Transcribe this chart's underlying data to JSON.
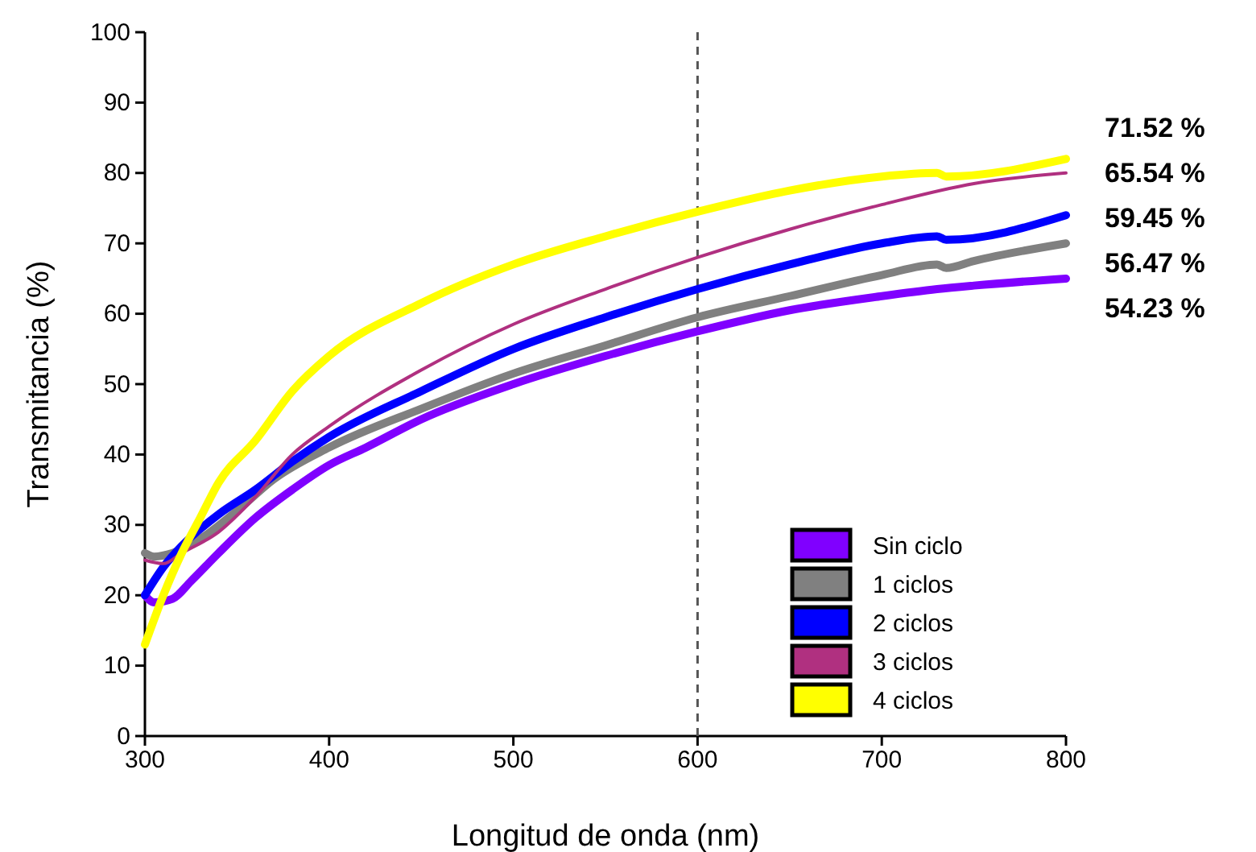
{
  "chart_data": {
    "type": "line",
    "xlabel": "Longitud de onda (nm)",
    "ylabel": "Transmitancia (%)",
    "xlim": [
      300,
      800
    ],
    "xticks": [
      300,
      400,
      500,
      600,
      700,
      800
    ],
    "ylim": [
      0,
      100
    ],
    "yticks": [
      0,
      10,
      20,
      30,
      40,
      50,
      60,
      70,
      80,
      90,
      100
    ],
    "grid": false,
    "legend": "bottom right",
    "marker": "none",
    "line_style": "solid",
    "ref_lines": [
      {
        "axis": "x",
        "value": 600,
        "color": "#555555",
        "line_style": "dashed"
      }
    ],
    "annotations": [
      "71.52 %",
      "65.54 %",
      "59.45 %",
      "56.47 %",
      "54.23 %"
    ],
    "series": [
      {
        "name": "Sin ciclo",
        "color": "#8000ff",
        "x": [
          300,
          305,
          315,
          325,
          340,
          360,
          380,
          400,
          420,
          450,
          500,
          550,
          600,
          650,
          700,
          730,
          750,
          800
        ],
        "values": [
          20,
          19,
          19.5,
          22,
          26,
          31,
          35,
          38.5,
          41,
          45,
          50,
          54,
          57.5,
          60.5,
          62.5,
          63.5,
          64,
          65
        ]
      },
      {
        "name": "1 ciclos",
        "color": "#808080",
        "x": [
          300,
          305,
          315,
          330,
          350,
          370,
          400,
          450,
          500,
          550,
          600,
          650,
          700,
          730,
          735,
          750,
          800
        ],
        "values": [
          26,
          25.5,
          26,
          28,
          32,
          36.5,
          41,
          46.5,
          51.5,
          55.5,
          59.5,
          62.5,
          65.5,
          67,
          66.5,
          67.5,
          70
        ]
      },
      {
        "name": "2 ciclos",
        "color": "#0000ff",
        "x": [
          300,
          310,
          320,
          340,
          360,
          380,
          400,
          450,
          500,
          550,
          600,
          650,
          700,
          730,
          735,
          800
        ],
        "values": [
          20,
          24,
          27,
          31.5,
          35,
          39,
          42.5,
          49,
          55,
          59.5,
          63.5,
          67,
          70,
          71,
          70.5,
          74
        ]
      },
      {
        "name": "3 ciclos",
        "color": "#b03080",
        "x": [
          300,
          310,
          320,
          340,
          360,
          380,
          400,
          450,
          500,
          550,
          600,
          650,
          700,
          750,
          800
        ],
        "values": [
          25,
          24.5,
          26,
          29,
          34,
          40,
          44,
          52,
          58.5,
          63.5,
          68,
          72,
          75.5,
          78.5,
          80
        ]
      },
      {
        "name": "4 ciclos",
        "color": "#ffff00",
        "x": [
          300,
          310,
          320,
          330,
          340,
          360,
          380,
          400,
          450,
          500,
          550,
          600,
          650,
          700,
          730,
          735,
          800
        ],
        "values": [
          13,
          20,
          26,
          31,
          36,
          42,
          49,
          54,
          61.5,
          67,
          71,
          74.5,
          77.5,
          79.5,
          80,
          79.5,
          82
        ]
      }
    ]
  }
}
